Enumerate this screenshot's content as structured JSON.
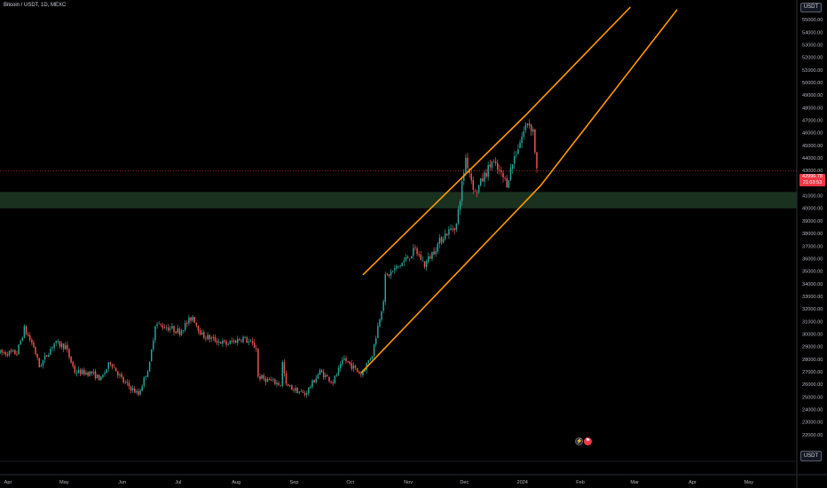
{
  "title": "Bitcoin / USDT, 1D, MEXC",
  "quote_badge": "USDT",
  "unit_button": "USDT",
  "last_price": "42996.78",
  "countdown": "21:03:53",
  "colors": {
    "up": "#26a69a",
    "down": "#ef5350",
    "channel": "#ff9800",
    "zone": "#1e3a26",
    "price_line": "#f23645"
  },
  "events": {
    "icon1": "⚡",
    "icon2": "⚑"
  },
  "chart_data": {
    "type": "candlestick",
    "title": "Bitcoin / USDT, 1D, MEXC",
    "ylim": [
      21000,
      56000
    ],
    "y_ticks": [
      "55000.00",
      "54000.00",
      "53000.00",
      "52000.00",
      "51000.00",
      "50000.00",
      "49000.00",
      "48000.00",
      "47000.00",
      "46000.00",
      "45000.00",
      "44000.00",
      "43000.00",
      "42000.00",
      "41000.00",
      "40000.00",
      "39000.00",
      "38000.00",
      "37000.00",
      "36000.00",
      "35000.00",
      "34000.00",
      "33000.00",
      "32000.00",
      "31000.00",
      "30000.00",
      "29000.00",
      "28000.00",
      "27000.00",
      "26000.00",
      "25000.00",
      "24000.00",
      "23000.00",
      "22000.00"
    ],
    "x_ticks": [
      "Apr",
      "May",
      "Jun",
      "Jul",
      "Aug",
      "Sep",
      "Oct",
      "Nov",
      "Dec",
      "2024",
      "Feb",
      "Mar",
      "Apr",
      "May"
    ],
    "x_range": [
      "2023-04-01",
      "2024-05-31"
    ],
    "price_path": [
      [
        "2023-04-01",
        28500
      ],
      [
        "2023-04-10",
        28500
      ],
      [
        "2023-04-14",
        30400
      ],
      [
        "2023-04-19",
        29000
      ],
      [
        "2023-04-22",
        27400
      ],
      [
        "2023-04-30",
        29300
      ],
      [
        "2023-05-06",
        29000
      ],
      [
        "2023-05-11",
        27000
      ],
      [
        "2023-05-20",
        26900
      ],
      [
        "2023-05-25",
        26400
      ],
      [
        "2023-05-30",
        27800
      ],
      [
        "2023-06-06",
        26200
      ],
      [
        "2023-06-14",
        25200
      ],
      [
        "2023-06-20",
        27600
      ],
      [
        "2023-06-23",
        30800
      ],
      [
        "2023-06-30",
        30500
      ],
      [
        "2023-07-06",
        30200
      ],
      [
        "2023-07-13",
        31400
      ],
      [
        "2023-07-18",
        29900
      ],
      [
        "2023-07-31",
        29200
      ],
      [
        "2023-08-09",
        29700
      ],
      [
        "2023-08-16",
        28900
      ],
      [
        "2023-08-17",
        26600
      ],
      [
        "2023-08-29",
        26000
      ],
      [
        "2023-08-30",
        27700
      ],
      [
        "2023-09-01",
        25900
      ],
      [
        "2023-09-11",
        25200
      ],
      [
        "2023-09-19",
        27000
      ],
      [
        "2023-09-26",
        26200
      ],
      [
        "2023-10-02",
        28000
      ],
      [
        "2023-10-11",
        26800
      ],
      [
        "2023-10-17",
        28400
      ],
      [
        "2023-10-23",
        32800
      ],
      [
        "2023-10-24",
        34500
      ],
      [
        "2023-11-01",
        35500
      ],
      [
        "2023-11-09",
        36700
      ],
      [
        "2023-11-14",
        35500
      ],
      [
        "2023-11-24",
        37800
      ],
      [
        "2023-12-01",
        38700
      ],
      [
        "2023-12-04",
        41900
      ],
      [
        "2023-12-06",
        44000
      ],
      [
        "2023-12-11",
        41200
      ],
      [
        "2023-12-20",
        43700
      ],
      [
        "2023-12-28",
        42000
      ],
      [
        "2024-01-01",
        44100
      ],
      [
        "2024-01-08",
        46900
      ],
      [
        "2024-01-11",
        46200
      ],
      [
        "2024-01-13",
        42996.78
      ]
    ],
    "last_price": 42996.78,
    "channel": {
      "lower": [
        [
          "2023-10-11",
          26900
        ],
        [
          "2024-01-15",
          41800
        ],
        [
          "2024-03-28",
          55800
        ]
      ],
      "upper": [
        [
          "2023-10-12",
          34700
        ],
        [
          "2024-01-07",
          47400
        ],
        [
          "2024-03-03",
          56000
        ]
      ]
    },
    "support_zone": [
      40000,
      41300
    ],
    "grid": false
  }
}
